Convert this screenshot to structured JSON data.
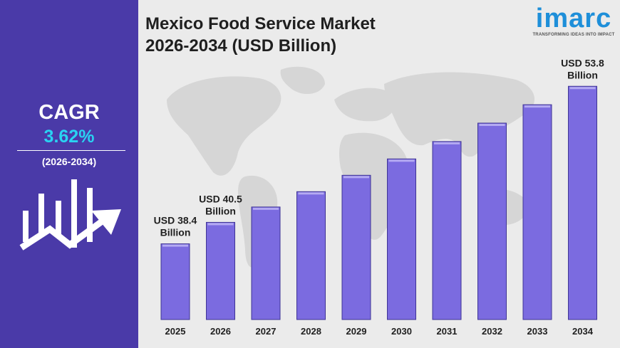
{
  "sidebar": {
    "cagr_label": "CAGR",
    "cagr_value": "3.62%",
    "cagr_period": "(2026-2034)"
  },
  "logo": {
    "name": "imarc",
    "tagline": "TRANSFORMING IDEAS INTO IMPACT"
  },
  "colors": {
    "sidebar": "#4a3aa8",
    "cagr_value": "#29d3f2",
    "bar_fill": "#7b6be0",
    "logo": "#1e8fd9"
  },
  "chart_data": {
    "type": "bar",
    "title_line1": "Mexico Food Service Market",
    "title_line2": "2026-2034 (USD Billion)",
    "categories": [
      "2025",
      "2026",
      "2027",
      "2028",
      "2029",
      "2030",
      "2031",
      "2032",
      "2033",
      "2034"
    ],
    "values": [
      38.4,
      40.5,
      42.0,
      43.5,
      45.1,
      46.7,
      48.4,
      50.2,
      52.0,
      53.8
    ],
    "ylim": [
      31,
      55
    ],
    "annotations": [
      {
        "index": 0,
        "line1": "USD 38.4",
        "line2": "Billion"
      },
      {
        "index": 1,
        "line1": "USD 40.5",
        "line2": "Billion"
      },
      {
        "index": 9,
        "line1": "USD 53.8",
        "line2": "Billion"
      }
    ]
  }
}
